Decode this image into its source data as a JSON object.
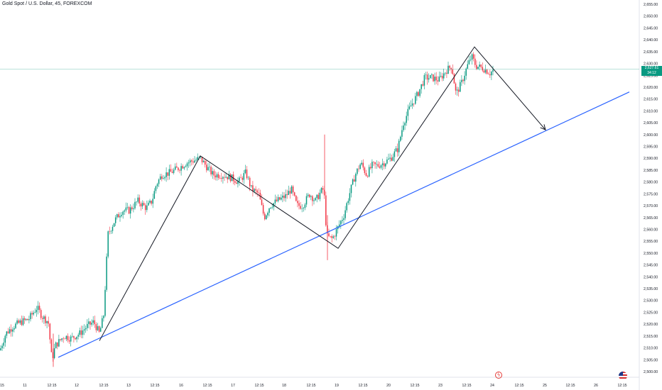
{
  "header": {
    "title": "Gold Spot / U.S. Dollar, 45, FOREXCOM"
  },
  "price_badge": {
    "price": "2,627.61",
    "countdown": "34:12",
    "color": "#089981"
  },
  "icons": {
    "event": "lightning-icon",
    "flag": "us-flag-icon"
  },
  "colors": {
    "up": "#089981",
    "down": "#f23645",
    "trendline": "#2962ff",
    "pattern": "#131722",
    "price_line": "#089981"
  },
  "chart_data": {
    "type": "candlestick",
    "title": "Gold Spot / U.S. Dollar, 45, FOREXCOM",
    "ylim": [
      2500,
      2655
    ],
    "y_ticks": [
      "2,500.00",
      "2,505.00",
      "2,510.00",
      "2,515.00",
      "2,520.00",
      "2,525.00",
      "2,530.00",
      "2,535.00",
      "2,540.00",
      "2,545.00",
      "2,550.00",
      "2,555.00",
      "2,560.00",
      "2,565.00",
      "2,570.00",
      "2,575.00",
      "2,580.00",
      "2,585.00",
      "2,590.00",
      "2,595.00",
      "2,600.00",
      "2,605.00",
      "2,610.00",
      "2,615.00",
      "2,620.00",
      "2,625.00",
      "2,630.00",
      "2,635.00",
      "2,640.00",
      "2,645.00",
      "2,650.00",
      "2,655.00"
    ],
    "x_ticks": [
      "15",
      "11",
      "12:15",
      "12",
      "12:15",
      "13",
      "12:15",
      "16",
      "12:15",
      "17",
      "12:15",
      "18",
      "12:15",
      "19",
      "12:15",
      "20",
      "12:15",
      "23",
      "12:15",
      "24",
      "12:15",
      "25",
      "12:15",
      "26",
      "12:15"
    ],
    "last_price": 2627.61,
    "candles_sample": [
      {
        "x": "11",
        "o": 2512,
        "h": 2520,
        "l": 2504,
        "c": 2518
      },
      {
        "x": "12 12:15",
        "o": 2513,
        "h": 2521,
        "l": 2510,
        "c": 2517
      },
      {
        "x": "13",
        "o": 2565,
        "h": 2572,
        "l": 2560,
        "c": 2569
      },
      {
        "x": "16",
        "o": 2585,
        "h": 2592,
        "l": 2580,
        "c": 2588
      },
      {
        "x": "17",
        "o": 2582,
        "h": 2588,
        "l": 2575,
        "c": 2580
      },
      {
        "x": "18",
        "o": 2568,
        "h": 2575,
        "l": 2563,
        "c": 2572
      },
      {
        "x": "19",
        "o": 2570,
        "h": 2600,
        "l": 2547,
        "c": 2554
      },
      {
        "x": "20",
        "o": 2588,
        "h": 2592,
        "l": 2585,
        "c": 2590
      },
      {
        "x": "23",
        "o": 2628,
        "h": 2632,
        "l": 2620,
        "c": 2630
      },
      {
        "x": "24",
        "o": 2628,
        "h": 2632,
        "l": 2625,
        "c": 2627.61
      }
    ],
    "trendline": {
      "from": {
        "x": "12 12:15",
        "y": 2506
      },
      "to": {
        "x": "26 12:15",
        "y": 2618
      }
    },
    "pattern_path": [
      {
        "x": "12",
        "y": 2513
      },
      {
        "x": "16",
        "y": 2591
      },
      {
        "x": "19",
        "y": 2552
      },
      {
        "x": "23 12:15",
        "y": 2637
      },
      {
        "x": "25",
        "y": 2602
      }
    ]
  }
}
